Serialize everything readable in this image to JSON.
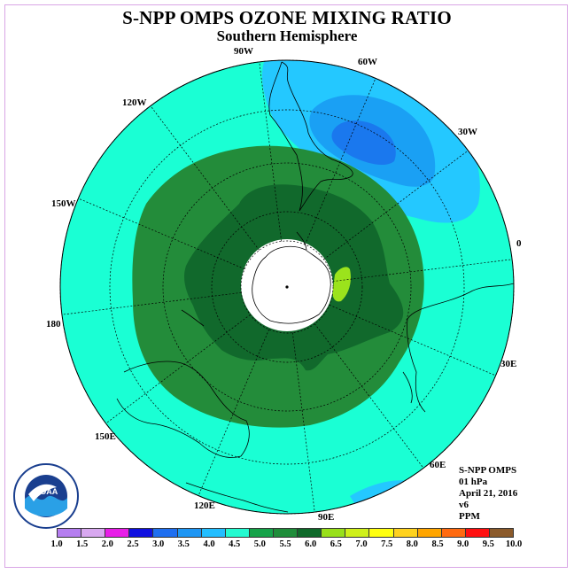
{
  "title": "S-NPP OMPS OZONE MIXING RATIO",
  "subtitle": "Southern Hemisphere",
  "longitude_labels": {
    "lon_90w": "90W",
    "lon_60w": "60W",
    "lon_30w": "30W",
    "lon_0": "0",
    "lon_30e": "30E",
    "lon_60e": "60E",
    "lon_90e": "90E",
    "lon_120e": "120E",
    "lon_150e": "150E",
    "lon_180": "180",
    "lon_150w": "150W",
    "lon_120w": "120W"
  },
  "info": {
    "product": "S-NPP OMPS",
    "level": "01 hPa",
    "date": "April 21, 2016",
    "version": "v6",
    "units": "PPM"
  },
  "logo_text": "NOAA",
  "colorbar": {
    "ticks": [
      "1.0",
      "1.5",
      "2.0",
      "2.5",
      "3.0",
      "3.5",
      "4.0",
      "4.5",
      "5.0",
      "5.5",
      "6.0",
      "6.5",
      "7.0",
      "7.5",
      "8.0",
      "8.5",
      "9.0",
      "9.5",
      "10.0"
    ],
    "colors": [
      "#b57ef0",
      "#d8a8f0",
      "#e81ee8",
      "#1010e0",
      "#1f6ff0",
      "#1e96f4",
      "#23beff",
      "#24fad0",
      "#16a34a",
      "#1f8d3a",
      "#0f6a2a",
      "#98e01a",
      "#cff01a",
      "#ffff10",
      "#ffd21e",
      "#ffa500",
      "#ff6a10",
      "#ff1010",
      "#8b5a2b"
    ]
  },
  "map_colors": {
    "band_4_5": "#1affd4",
    "band_4_0": "#24c8ff",
    "band_3_5": "#1aa0f4",
    "band_3_0": "#1a78ee",
    "band_5_5": "#238c3a",
    "band_6_0": "#11692c",
    "band_6_5": "#9be31c",
    "pole_mask": "#ffffff"
  }
}
